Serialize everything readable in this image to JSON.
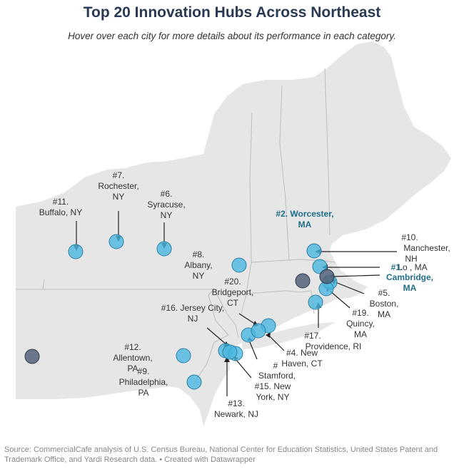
{
  "title": "Top 20 Innovation Hubs Across Northeast",
  "subtitle": "Hover over each city for more details about its performance in each category.",
  "source": "Source: CommercialCafe analysis of U.S. Census Bureau, National Center for Education Statistics, United States Patent and Trademark Office, and Yardi Research data. • Created with Datawrapper",
  "colors": {
    "land": "#e6e6e6",
    "border": "#bdbdbd",
    "marker": "#4ab7e0",
    "marker_dark": "#546178",
    "highlight_text": "#1f6f8b"
  },
  "labels": {
    "buffalo": [
      "#11.",
      "Buffalo, NY"
    ],
    "rochester": [
      "#7.",
      "Rochester,",
      "NY"
    ],
    "syracuse": [
      "#6.",
      "Syracuse,",
      "NY"
    ],
    "worcester": [
      "#2. Worcester,",
      "MA"
    ],
    "albany": [
      "#8.",
      "Albany,",
      "NY"
    ],
    "manchester": [
      "#10.",
      "Manchester,",
      "NH"
    ],
    "lowell": "Lo       , MA",
    "cambridge": [
      "#1.",
      "Cambridge,",
      "MA"
    ],
    "bridgeport": [
      "#20.",
      "Bridgeport,",
      "CT"
    ],
    "jersey_city": [
      "#16. Jersey City,",
      "NJ"
    ],
    "boston": [
      "#5.",
      "Boston,",
      "MA"
    ],
    "quincy": [
      "#19.",
      "Quincy,",
      "MA"
    ],
    "providence": [
      "#17.",
      "Providence, RI"
    ],
    "new_haven": [
      "#4. New",
      "Haven, CT"
    ],
    "allentown": [
      "#12.",
      "Allentown,",
      "PA"
    ],
    "philadelphia": [
      "#9.",
      "Philadelphia,",
      "PA"
    ],
    "stamford": [
      "#",
      "Stamford,"
    ],
    "new_york": [
      "#15. New",
      "York, NY"
    ],
    "newark": [
      "#13.",
      "Newark, NJ"
    ]
  }
}
